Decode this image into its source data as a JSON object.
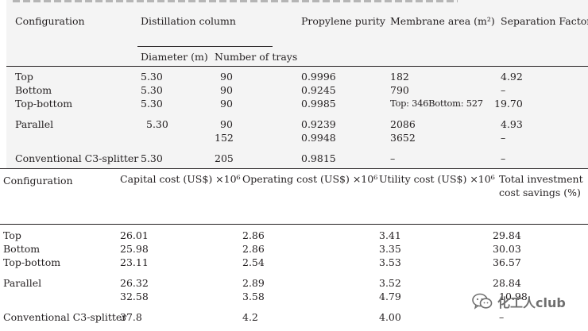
{
  "table1": {
    "headers": {
      "configuration": "Configuration",
      "distillation": "Distillation column",
      "diameter": "Diameter (m)",
      "trays": "Number of trays",
      "purity": "Propylene purity",
      "membrane": "Membrane area (m²)",
      "separation": "Separation Factor"
    },
    "rows": [
      {
        "config": "Top",
        "diameter": "5.30",
        "trays": "90",
        "purity": "0.9996",
        "membrane": "182",
        "separation": "4.92"
      },
      {
        "config": "Bottom",
        "diameter": "5.30",
        "trays": "90",
        "purity": "0.9245",
        "membrane": "790",
        "separation": "–"
      },
      {
        "config": "Top-bottom",
        "diameter": "5.30",
        "trays": "90",
        "purity": "0.9985",
        "membrane": "Top: 346Bottom: 527",
        "separation": "19.70"
      },
      {
        "config": "Parallel",
        "diameter": "5.30",
        "trays": "90",
        "purity": "0.9239",
        "membrane": "2086",
        "separation": "4.93"
      },
      {
        "config": "",
        "diameter": "",
        "trays": "152",
        "purity": "0.9948",
        "membrane": "3652",
        "separation": "–"
      },
      {
        "config": "Conventional C3-splitter",
        "diameter": "5.30",
        "trays": "205",
        "purity": "0.9815",
        "membrane": "–",
        "separation": "–"
      }
    ]
  },
  "table2": {
    "headers": {
      "configuration": "Configuration",
      "capital": "Capital cost (US$) ×10⁶",
      "operating": "Operating cost (US$) ×10⁶",
      "utility": "Utility cost (US$) ×10⁶",
      "savings_line1": "Total investment",
      "savings_line2": "cost savings (%)"
    },
    "rows": [
      {
        "config": "Top",
        "capital": "26.01",
        "operating": "2.86",
        "utility": "3.41",
        "savings": "29.84"
      },
      {
        "config": "Bottom",
        "capital": "25.98",
        "operating": "2.86",
        "utility": "3.35",
        "savings": "30.03"
      },
      {
        "config": "Top-bottom",
        "capital": "23.11",
        "operating": "2.54",
        "utility": "3.53",
        "savings": "36.57"
      },
      {
        "config": "Parallel",
        "capital": "26.32",
        "operating": "2.89",
        "utility": "3.52",
        "savings": "28.84"
      },
      {
        "config": "",
        "capital": "32.58",
        "operating": "3.58",
        "utility": "4.79",
        "savings": "10.98"
      },
      {
        "config": "Conventional C3-splitter",
        "capital": "37.8",
        "operating": "4.2",
        "utility": "4.00",
        "savings": "–"
      }
    ]
  },
  "watermark": {
    "text": "化工人club",
    "icon": "wechat-icon"
  }
}
